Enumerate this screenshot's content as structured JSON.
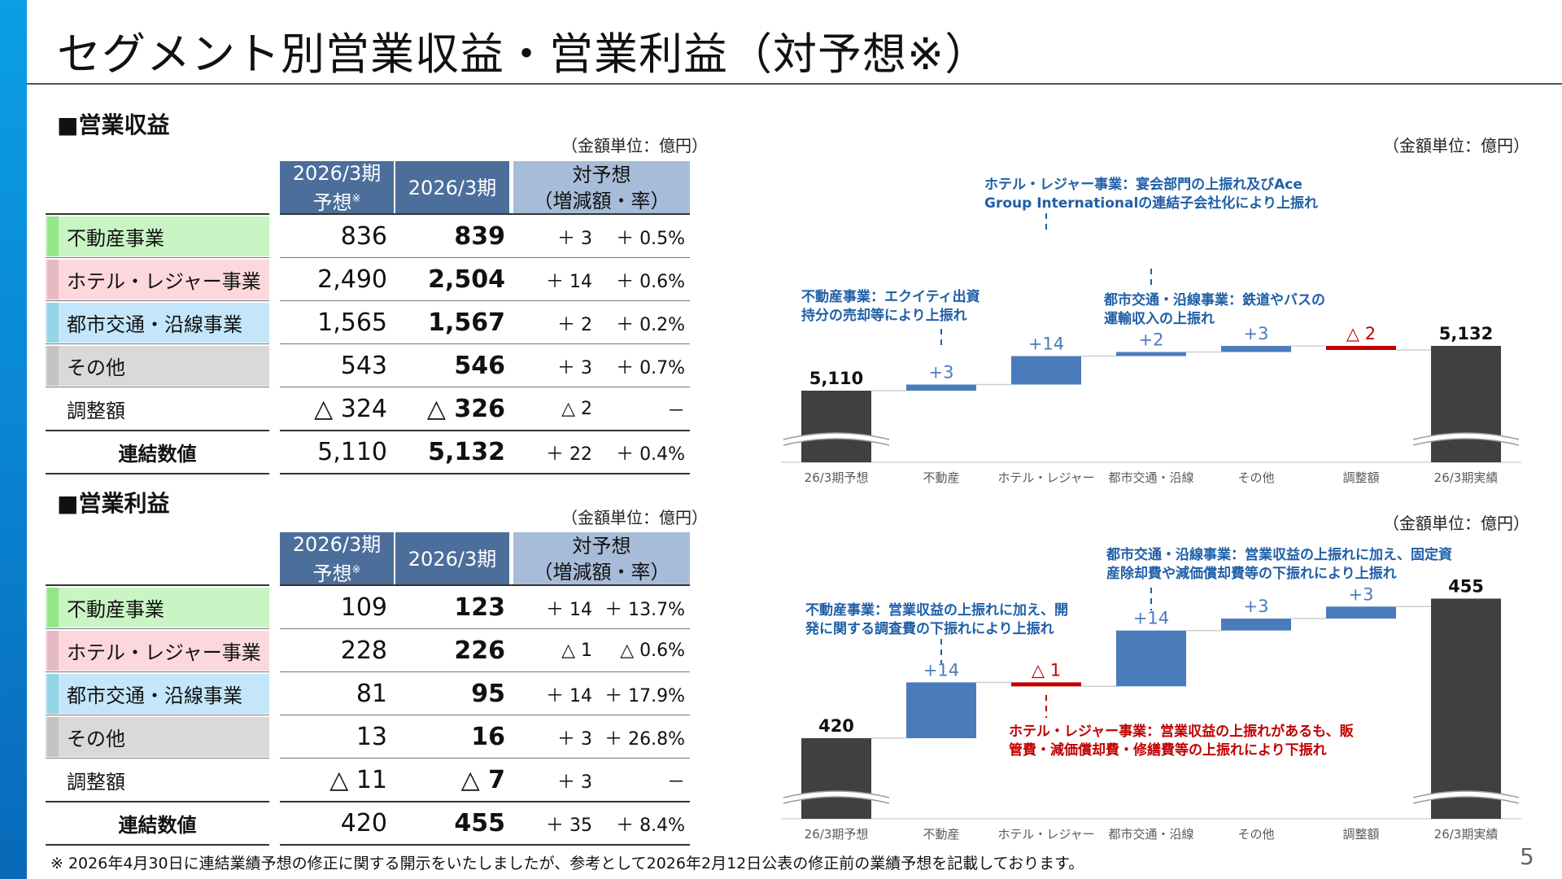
{
  "title": "セグメント別営業収益・営業利益（対予想※）",
  "sections": {
    "revenue": "■営業収益",
    "profit": "■営業利益"
  },
  "unit_label": "（金額単位：億円）",
  "table_headers": {
    "forecast_main": "2026/3期",
    "forecast_sub": "予想",
    "forecast_mark": "※",
    "actual": "2026/3期",
    "vs_main": "対予想",
    "vs_sub": "（増減額・率）"
  },
  "revenue_table": [
    {
      "segment": "不動産事業",
      "color": "#c9f5c4",
      "forecast": "836",
      "actual": "839",
      "diff": "＋ 3",
      "rate": "＋ 0.5%"
    },
    {
      "segment": "ホテル・レジャー事業",
      "color": "#fcd8dc",
      "forecast": "2,490",
      "actual": "2,504",
      "diff": "＋ 14",
      "rate": "＋ 0.6%"
    },
    {
      "segment": "都市交通・沿線事業",
      "color": "#c4e6fb",
      "forecast": "1,565",
      "actual": "1,567",
      "diff": "＋ 2",
      "rate": "＋ 0.2%"
    },
    {
      "segment": "その他",
      "color": "#d9d9d9",
      "forecast": "543",
      "actual": "546",
      "diff": "＋ 3",
      "rate": "＋ 0.7%"
    },
    {
      "segment": "調整額",
      "color": "",
      "forecast": "△ 324",
      "actual": "△ 326",
      "diff": "△ 2",
      "rate": "－"
    },
    {
      "segment": "連結数値",
      "color": "",
      "forecast": "5,110",
      "actual": "5,132",
      "diff": "＋ 22",
      "rate": "＋ 0.4%"
    }
  ],
  "profit_table": [
    {
      "segment": "不動産事業",
      "color": "#c9f5c4",
      "forecast": "109",
      "actual": "123",
      "diff": "＋ 14",
      "rate": "＋ 13.7%"
    },
    {
      "segment": "ホテル・レジャー事業",
      "color": "#fcd8dc",
      "forecast": "228",
      "actual": "226",
      "diff": "△ 1",
      "rate": "△ 0.6%"
    },
    {
      "segment": "都市交通・沿線事業",
      "color": "#c4e6fb",
      "forecast": "81",
      "actual": "95",
      "diff": "＋ 14",
      "rate": "＋ 17.9%"
    },
    {
      "segment": "その他",
      "color": "#d9d9d9",
      "forecast": "13",
      "actual": "16",
      "diff": "＋ 3",
      "rate": "＋ 26.8%"
    },
    {
      "segment": "調整額",
      "color": "",
      "forecast": "△ 11",
      "actual": "△ 7",
      "diff": "＋ 3",
      "rate": "－"
    },
    {
      "segment": "連結数値",
      "color": "",
      "forecast": "420",
      "actual": "455",
      "diff": "＋ 35",
      "rate": "＋ 8.4%"
    }
  ],
  "chart_data": [
    {
      "type": "bar",
      "subtype": "waterfall",
      "unit": "（金額単位：億円）",
      "categories": [
        "26/3期予想",
        "不動産",
        "ホテル・レジャー",
        "都市交通・沿線",
        "その他",
        "調整額",
        "26/3期実績"
      ],
      "values": [
        5110,
        3,
        14,
        2,
        3,
        -2,
        5132
      ],
      "value_labels": [
        "5,110",
        "+3",
        "+14",
        "+2",
        "+3",
        "△ 2",
        "5,132"
      ],
      "axis_break": true,
      "colors": {
        "total": "#404040",
        "increase": "#4a7cbc",
        "decrease": "#c00000"
      },
      "annotations": [
        {
          "target": "不動産",
          "lines": [
            "不動産事業：エクイティ出資",
            "持分の売却等により上振れ"
          ],
          "color": "#1f5fa8"
        },
        {
          "target": "ホテル・レジャー",
          "lines": [
            "ホテル・レジャー事業：宴会部門の上振れ及びAce",
            "Group Internationalの連結子会社化により上振れ"
          ],
          "color": "#1f5fa8"
        },
        {
          "target": "都市交通・沿線",
          "lines": [
            "都市交通・沿線事業：鉄道やバスの",
            "運輸収入の上振れ"
          ],
          "color": "#1f5fa8"
        }
      ]
    },
    {
      "type": "bar",
      "subtype": "waterfall",
      "unit": "（金額単位：億円）",
      "categories": [
        "26/3期予想",
        "不動産",
        "ホテル・レジャー",
        "都市交通・沿線",
        "その他",
        "調整額",
        "26/3期実績"
      ],
      "values": [
        420,
        14,
        -1,
        14,
        3,
        3,
        455
      ],
      "value_labels": [
        "420",
        "+14",
        "△ 1",
        "+14",
        "+3",
        "+3",
        "455"
      ],
      "axis_break": true,
      "colors": {
        "total": "#404040",
        "increase": "#4a7cbc",
        "decrease": "#c00000"
      },
      "annotations": [
        {
          "target": "不動産",
          "lines": [
            "不動産事業：営業収益の上振れに加え、開",
            "発に関する調査費の下振れにより上振れ"
          ],
          "color": "#1f5fa8"
        },
        {
          "target": "ホテル・レジャー",
          "lines": [
            "ホテル・レジャー事業：営業収益の上振れがあるも、販",
            "管費・減価償却費・修繕費等の上振れにより下振れ"
          ],
          "color": "#c00000"
        },
        {
          "target": "都市交通・沿線",
          "lines": [
            "都市交通・沿線事業：営業収益の上振れに加え、固定資",
            "産除却費や減価償却費等の下振れにより上振れ"
          ],
          "color": "#1f5fa8"
        }
      ]
    }
  ],
  "footnote": "※ 2026年4月30日に連結業績予想の修正に関する開示をいたしましたが、参考として2026年2月12日公表の修正前の業績予想を記載しております。",
  "page_number": "5"
}
